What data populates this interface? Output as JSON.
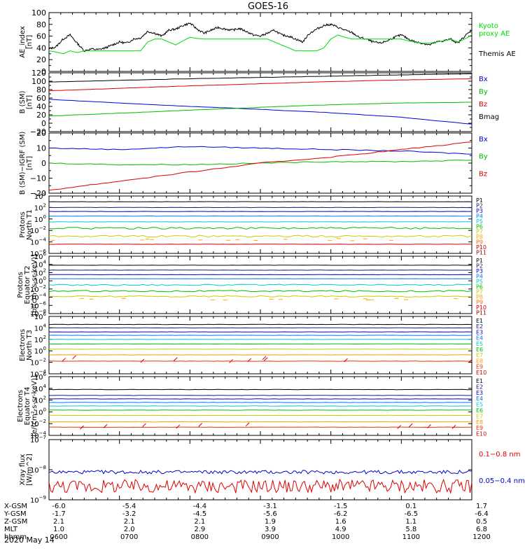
{
  "figure": {
    "title": "GOES-16",
    "date_label": "2020 May 14"
  },
  "time_axis": {
    "ticks": [
      "0600",
      "0700",
      "0800",
      "0900",
      "1000",
      "1100",
      "1200"
    ],
    "minor_per_major": 6
  },
  "ephemeris": {
    "rows": [
      {
        "label": "X-GSM",
        "values": [
          "-6.0",
          "-5.4",
          "-4.4",
          "-3.1",
          "-1.5",
          "0.1",
          "1.7"
        ]
      },
      {
        "label": "Y-GSM",
        "values": [
          "-1.7",
          "-3.2",
          "-4.5",
          "-5.6",
          "-6.2",
          "-6.5",
          "-6.4"
        ]
      },
      {
        "label": "Z-GSM",
        "values": [
          "2.1",
          "2.1",
          "2.1",
          "1.9",
          "1.6",
          "1.1",
          "0.5"
        ]
      },
      {
        "label": "MLT",
        "values": [
          "1.0",
          "2.0",
          "2.9",
          "3.9",
          "4.9",
          "5.8",
          "6.8"
        ]
      },
      {
        "label": "hhmm",
        "values": [
          "0600",
          "0700",
          "0800",
          "0900",
          "1000",
          "1100",
          "1200"
        ]
      }
    ]
  },
  "chart_data": [
    {
      "type": "line",
      "id": "ae",
      "ylabel": [
        "AE_index",
        "[nT]"
      ],
      "ylim": [
        0,
        100
      ],
      "ticks": [
        "0",
        "20",
        "40",
        "60",
        "80",
        "100"
      ],
      "legend": [
        {
          "name": "Kyoto",
          "color": "#00dd00"
        },
        {
          "name": "proxy AE",
          "color": "#00dd00"
        },
        {
          "name": "Themis AE",
          "color": "#000000"
        }
      ],
      "series": [
        {
          "name": "Themis AE",
          "color": "#000000",
          "x": [
            6.0,
            6.1,
            6.2,
            6.3,
            6.4,
            6.5,
            6.6,
            6.7,
            6.8,
            6.9,
            7.0,
            7.1,
            7.2,
            7.3,
            7.4,
            7.5,
            7.6,
            7.7,
            7.8,
            7.9,
            8.0,
            8.1,
            8.2,
            8.3,
            8.4,
            8.5,
            8.6,
            8.7,
            8.8,
            8.9,
            9.0,
            9.1,
            9.2,
            9.3,
            9.4,
            9.5,
            9.6,
            9.7,
            9.8,
            9.9,
            10.0,
            10.1,
            10.2,
            10.3,
            10.4,
            10.5,
            10.6,
            10.7,
            10.8,
            10.9,
            11.0,
            11.1,
            11.2,
            11.3,
            11.4,
            11.5,
            11.6,
            11.7,
            11.8,
            11.9,
            12.0
          ],
          "y": [
            38,
            42,
            55,
            62,
            48,
            35,
            38,
            37,
            40,
            45,
            50,
            48,
            55,
            57,
            68,
            65,
            60,
            70,
            72,
            78,
            82,
            72,
            65,
            70,
            75,
            72,
            70,
            73,
            68,
            62,
            60,
            65,
            70,
            62,
            60,
            55,
            50,
            65,
            72,
            78,
            80,
            75,
            70,
            66,
            58,
            55,
            50,
            48,
            52,
            58,
            62,
            55,
            50,
            48,
            45,
            50,
            52,
            55,
            48,
            60,
            70
          ]
        },
        {
          "name": "Kyoto proxy AE",
          "color": "#00dd00",
          "x": [
            6.0,
            6.1,
            6.2,
            6.3,
            6.4,
            6.5,
            6.6,
            6.7,
            6.8,
            6.9,
            7.0,
            7.1,
            7.2,
            7.3,
            7.4,
            7.5,
            7.6,
            7.7,
            7.8,
            7.9,
            8.0,
            8.1,
            8.2,
            8.3,
            8.4,
            8.5,
            8.6,
            8.7,
            8.8,
            8.9,
            9.0,
            9.1,
            9.2,
            9.3,
            9.4,
            9.5,
            9.6,
            9.7,
            9.8,
            9.9,
            10.0,
            10.1,
            10.2,
            10.3,
            10.4,
            10.5,
            10.6,
            10.7,
            10.8,
            10.9,
            11.0,
            11.1,
            11.2,
            11.3,
            11.4,
            11.5,
            11.6,
            11.7,
            11.8,
            11.9,
            12.0
          ],
          "y": [
            35,
            33,
            30,
            35,
            32,
            35,
            35,
            35,
            35,
            35,
            35,
            35,
            35,
            35,
            50,
            55,
            55,
            50,
            45,
            52,
            58,
            56,
            55,
            55,
            55,
            55,
            55,
            55,
            55,
            55,
            55,
            55,
            50,
            45,
            40,
            35,
            35,
            35,
            35,
            40,
            55,
            62,
            58,
            55,
            55,
            55,
            55,
            55,
            55,
            55,
            55,
            52,
            50,
            48,
            48,
            50,
            52,
            55,
            50,
            55,
            62
          ]
        }
      ]
    },
    {
      "type": "line",
      "id": "bsm",
      "ylabel": [
        "B (SM)",
        "[nT]"
      ],
      "ylim": [
        -20,
        120
      ],
      "ticks": [
        "−20",
        "0",
        "20",
        "40",
        "60",
        "80",
        "100",
        "120"
      ],
      "legend": [
        {
          "name": "Bx",
          "color": "#0000dd"
        },
        {
          "name": "By",
          "color": "#00bb00"
        },
        {
          "name": "Bz",
          "color": "#dd0000"
        },
        {
          "name": "Bmag",
          "color": "#000000"
        }
      ],
      "series": [
        {
          "name": "Bx",
          "color": "#0000dd",
          "x": [
            6,
            7,
            8,
            9,
            10,
            11,
            12
          ],
          "y": [
            57,
            48,
            40,
            33,
            25,
            14,
            -2
          ]
        },
        {
          "name": "By",
          "color": "#00bb00",
          "x": [
            6,
            7,
            8,
            9,
            10,
            11,
            12
          ],
          "y": [
            17,
            24,
            31,
            38,
            44,
            48,
            50
          ]
        },
        {
          "name": "Bz",
          "color": "#dd0000",
          "x": [
            6,
            7,
            8,
            9,
            10,
            11,
            12
          ],
          "y": [
            77,
            83,
            89,
            94,
            99,
            103,
            106
          ]
        },
        {
          "name": "Bmag",
          "color": "#000000",
          "x": [
            6,
            7,
            8,
            9,
            10,
            11,
            12
          ],
          "y": [
            98,
            102,
            106,
            109,
            112,
            115,
            118
          ]
        }
      ]
    },
    {
      "type": "line",
      "id": "bigrf",
      "ylabel": [
        "B (SM)−IGRF (SM)",
        "[nT]"
      ],
      "ylim": [
        -20,
        20
      ],
      "ticks": [
        "−20",
        "−10",
        "0",
        "10",
        "20"
      ],
      "legend": [
        {
          "name": "Bx",
          "color": "#0000dd"
        },
        {
          "name": "By",
          "color": "#00bb00"
        },
        {
          "name": "Bz",
          "color": "#dd0000"
        }
      ],
      "series": [
        {
          "name": "Bx",
          "color": "#0000dd",
          "x": [
            6,
            7,
            8,
            9,
            10,
            11,
            12
          ],
          "y": [
            10,
            9,
            11,
            10,
            9,
            8,
            6
          ]
        },
        {
          "name": "By",
          "color": "#00bb00",
          "x": [
            6,
            7,
            8,
            9,
            10,
            11,
            12
          ],
          "y": [
            0,
            -1,
            -1,
            0,
            1,
            1,
            2
          ]
        },
        {
          "name": "Bz",
          "color": "#dd0000",
          "x": [
            6,
            7,
            8,
            9,
            10,
            11,
            12
          ],
          "y": [
            -18,
            -12,
            -6,
            0,
            4,
            9,
            14
          ]
        }
      ]
    },
    {
      "type": "line",
      "id": "pt1",
      "ylabel": [
        "Protons",
        "North T1"
      ],
      "log": true,
      "ylim_exp": [
        -6,
        4
      ],
      "tick_exponents": [
        4,
        2,
        0,
        -2,
        -4,
        -6
      ],
      "channels": [
        {
          "name": "P1",
          "color": "#000000",
          "level_exp": 3.0
        },
        {
          "name": "P2",
          "color": "#1a1a7a",
          "level_exp": 2.0
        },
        {
          "name": "P3",
          "color": "#0000cc",
          "level_exp": 1.3
        },
        {
          "name": "P4",
          "color": "#0077ff",
          "level_exp": 0.5
        },
        {
          "name": "P5",
          "color": "#00cccc",
          "level_exp": -0.5
        },
        {
          "name": "P6",
          "color": "#00c000",
          "level_exp": -1.6
        },
        {
          "name": "P7",
          "color": "#cccc00",
          "level_exp": -3.0
        },
        {
          "name": "P8",
          "color": "#ffaa00",
          "level_exp": null
        },
        {
          "name": "P9",
          "color": "#ff6600",
          "level_exp": null
        },
        {
          "name": "P10",
          "color": "#cc0000",
          "level_exp": -4.4
        },
        {
          "name": "P11",
          "color": "#990000",
          "level_exp": null
        }
      ]
    },
    {
      "type": "line",
      "id": "pt2",
      "ylabel": [
        "Protons",
        "Equator T2",
        "[p/(cm²-s-sr-keV)]"
      ],
      "log": true,
      "ylim_exp": [
        -8,
        6
      ],
      "tick_exponents": [
        6,
        4,
        2,
        0,
        -2,
        -4,
        -6,
        -8
      ],
      "channels": [
        {
          "name": "P1",
          "color": "#000000",
          "level_exp": 3.8
        },
        {
          "name": "P2",
          "color": "#1a1a7a",
          "level_exp": 2.6
        },
        {
          "name": "P3",
          "color": "#0000cc",
          "level_exp": 1.5
        },
        {
          "name": "P4",
          "color": "#0077ff",
          "level_exp": 0.5
        },
        {
          "name": "P5",
          "color": "#00cccc",
          "level_exp": -1.0
        },
        {
          "name": "P6",
          "color": "#00c000",
          "level_exp": -2.5
        },
        {
          "name": "P7",
          "color": "#cccc00",
          "level_exp": -3.8
        },
        {
          "name": "P8",
          "color": "#ffaa00",
          "level_exp": null
        },
        {
          "name": "P9",
          "color": "#ff6600",
          "level_exp": null
        },
        {
          "name": "P10",
          "color": "#cc0000",
          "level_exp": null
        },
        {
          "name": "P11",
          "color": "#990000",
          "level_exp": null
        }
      ]
    },
    {
      "type": "line",
      "id": "et3",
      "ylabel": [
        "Electrons",
        "North T3"
      ],
      "log": true,
      "ylim_exp": [
        -4,
        6
      ],
      "tick_exponents": [
        6,
        4,
        2,
        0,
        -2,
        -4
      ],
      "channels": [
        {
          "name": "E1",
          "color": "#000000",
          "level_exp": 4.6
        },
        {
          "name": "E2",
          "color": "#1a1a7a",
          "level_exp": 4.0
        },
        {
          "name": "E3",
          "color": "#0000cc",
          "level_exp": 3.3
        },
        {
          "name": "E4",
          "color": "#0077ff",
          "level_exp": 2.7
        },
        {
          "name": "E5",
          "color": "#00cccc",
          "level_exp": 2.0
        },
        {
          "name": "E6",
          "color": "#00c000",
          "level_exp": 1.2
        },
        {
          "name": "E7",
          "color": "#cccc00",
          "level_exp": 0.3
        },
        {
          "name": "E8",
          "color": "#ff9900",
          "level_exp": -0.7
        },
        {
          "name": "E9",
          "color": "#ee3300",
          "level_exp": -1.8
        },
        {
          "name": "E10",
          "color": "#cc0000",
          "level_exp": null
        }
      ]
    },
    {
      "type": "line",
      "id": "et4",
      "ylabel": [
        "Electrons",
        "Equator T4",
        "[e/(cm²-s-sr-keV)]"
      ],
      "log": true,
      "ylim_exp": [
        -4,
        6
      ],
      "tick_exponents": [
        6,
        4,
        2,
        0,
        -2,
        -4
      ],
      "channels": [
        {
          "name": "E1",
          "color": "#000000",
          "level_exp": 3.8
        },
        {
          "name": "E2",
          "color": "#1a1a7a",
          "level_exp": 2.8
        },
        {
          "name": "E3",
          "color": "#0000cc",
          "level_exp": 2.2
        },
        {
          "name": "E4",
          "color": "#0077ff",
          "level_exp": 1.6
        },
        {
          "name": "E5",
          "color": "#00cccc",
          "level_exp": 1.0
        },
        {
          "name": "E6",
          "color": "#00c000",
          "level_exp": 0.3
        },
        {
          "name": "E7",
          "color": "#cccc00",
          "level_exp": -0.6
        },
        {
          "name": "E8",
          "color": "#ff9900",
          "level_exp": -1.7
        },
        {
          "name": "E9",
          "color": "#ee3300",
          "level_exp": -2.6
        },
        {
          "name": "E10",
          "color": "#cc0000",
          "level_exp": null
        }
      ]
    },
    {
      "type": "line",
      "id": "xray",
      "ylabel": [
        "Xray flux",
        "[W/m^2]"
      ],
      "log": true,
      "ylim_exp": [
        -9,
        -7
      ],
      "tick_exponents": [
        -7,
        -8,
        -9
      ],
      "legend": [
        {
          "name": "0.1−0.8 nm",
          "color": "#dd0000"
        },
        {
          "name": "0.05−0.4 nm",
          "color": "#0000cc"
        }
      ],
      "series": [
        {
          "name": "0.1−0.8 nm",
          "color": "#dd0000",
          "level_exp": -8.55
        },
        {
          "name": "0.05−0.4 nm",
          "color": "#0000cc",
          "level_exp": -8.08
        }
      ]
    }
  ]
}
